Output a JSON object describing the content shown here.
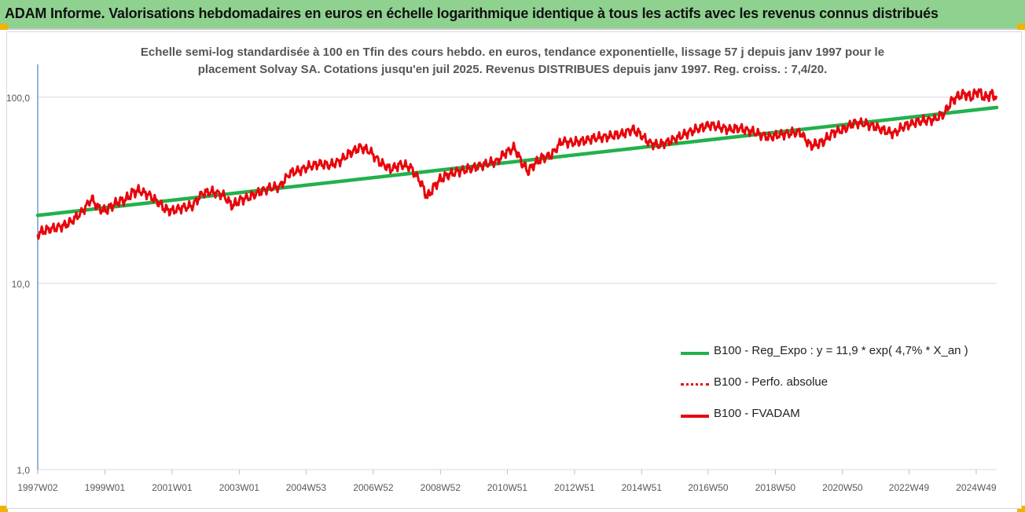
{
  "header": {
    "title": "ADAM Informe. Valorisations hebdomadaires en euros en échelle logarithmique identique à tous les actifs avec les revenus connus distribués"
  },
  "colors": {
    "header_bg": "#8fd18f",
    "regression": "#22b14c",
    "fvadam": "#e8060c",
    "perfo": "#e8060c",
    "accent": "#f0b400"
  },
  "chart_data": {
    "type": "line",
    "title": "Echelle semi-log standardisée à 100 en Tfin des cours hebdo. en euros, tendance exponentielle, lissage 57 j depuis janv 1997 pour le placement Solvay SA. Cotations jusqu'en juil 2025. Revenus DISTRIBUES depuis janv 1997. Reg. croiss. : 7,4/20.",
    "subtitle_lines": [
      "Echelle semi-log standardisée à 100 en Tfin des cours hebdo. en euros, tendance exponentielle, lissage 57 j depuis janv 1997 pour le",
      "placement Solvay SA. Cotations jusqu'en juil 2025. Revenus DISTRIBUES depuis janv 1997. Reg. croiss. : 7,4/20."
    ],
    "y_scale": "log",
    "ylim": [
      1,
      150
    ],
    "y_ticks": [
      {
        "value": 100,
        "label": "100,0"
      },
      {
        "value": 10,
        "label": "10,0"
      },
      {
        "value": 1,
        "label": "1,0"
      }
    ],
    "x_ticks": [
      {
        "year": 1997.0,
        "label": "1997W02"
      },
      {
        "year": 1999.0,
        "label": "1999W01"
      },
      {
        "year": 2001.0,
        "label": "2001W01"
      },
      {
        "year": 2003.0,
        "label": "2003W01"
      },
      {
        "year": 2004.99,
        "label": "2004W53"
      },
      {
        "year": 2006.99,
        "label": "2006W52"
      },
      {
        "year": 2008.99,
        "label": "2008W52"
      },
      {
        "year": 2010.98,
        "label": "2010W51"
      },
      {
        "year": 2012.98,
        "label": "2012W51"
      },
      {
        "year": 2014.98,
        "label": "2014W51"
      },
      {
        "year": 2016.96,
        "label": "2016W50"
      },
      {
        "year": 2018.96,
        "label": "2018W50"
      },
      {
        "year": 2020.96,
        "label": "2020W50"
      },
      {
        "year": 2022.94,
        "label": "2022W49"
      },
      {
        "year": 2024.94,
        "label": "2024W49"
      }
    ],
    "xlim": [
      1997.0,
      2025.55
    ],
    "grid": "horizontal",
    "legend_position": "bottom-right",
    "series": [
      {
        "name": "B100 - Reg_Expo : y = 11,9 * exp( 4,7% *  X_an )",
        "style": "solid-thick",
        "x": [
          1997.0,
          2025.55
        ],
        "values": [
          23.2,
          88.0
        ]
      },
      {
        "name": "B100 - Perfo. absolue",
        "style": "dotted",
        "x": [],
        "values": []
      },
      {
        "name": "B100 - FVADAM",
        "style": "solid",
        "x": [
          1997.0,
          1997.2,
          1997.5,
          1997.8,
          1998.0,
          1998.3,
          1998.6,
          1998.8,
          1999.0,
          1999.2,
          1999.4,
          1999.6,
          1999.8,
          2000.0,
          2000.3,
          2000.6,
          2000.8,
          2001.0,
          2001.3,
          2001.6,
          2001.9,
          2002.2,
          2002.5,
          2002.8,
          2003.0,
          2003.3,
          2003.6,
          2003.9,
          2004.2,
          2004.5,
          2004.8,
          2005.1,
          2005.4,
          2005.7,
          2006.0,
          2006.3,
          2006.6,
          2006.9,
          2007.2,
          2007.5,
          2007.8,
          2008.1,
          2008.4,
          2008.6,
          2008.8,
          2009.0,
          2009.2,
          2009.5,
          2009.8,
          2010.1,
          2010.4,
          2010.7,
          2010.9,
          2011.2,
          2011.4,
          2011.6,
          2011.8,
          2012.0,
          2012.3,
          2012.6,
          2012.9,
          2013.2,
          2013.5,
          2013.8,
          2014.1,
          2014.4,
          2014.7,
          2014.9,
          2015.2,
          2015.5,
          2015.8,
          2016.1,
          2016.4,
          2016.7,
          2017.0,
          2017.3,
          2017.6,
          2017.9,
          2018.2,
          2018.5,
          2018.8,
          2019.1,
          2019.4,
          2019.7,
          2020.0,
          2020.2,
          2020.4,
          2020.7,
          2021.0,
          2021.3,
          2021.6,
          2021.9,
          2022.2,
          2022.5,
          2022.8,
          2023.1,
          2023.4,
          2023.7,
          2024.0,
          2024.2,
          2024.4,
          2024.6,
          2024.8,
          2025.0,
          2025.2,
          2025.4,
          2025.55
        ],
        "values": [
          18.5,
          19.2,
          19.8,
          20.5,
          21.5,
          24.0,
          28.5,
          25.5,
          24.5,
          26.0,
          27.5,
          28.0,
          30.5,
          31.5,
          30.0,
          27.0,
          25.0,
          24.5,
          25.5,
          26.0,
          30.5,
          31.0,
          30.0,
          26.0,
          28.0,
          29.0,
          31.0,
          32.5,
          33.0,
          39.0,
          40.5,
          42.5,
          44.0,
          43.0,
          45.5,
          50.0,
          54.0,
          51.0,
          44.5,
          41.0,
          43.5,
          42.0,
          35.0,
          29.0,
          33.0,
          36.5,
          38.0,
          40.0,
          41.0,
          42.5,
          44.0,
          45.5,
          50.0,
          53.5,
          45.0,
          40.0,
          44.0,
          47.0,
          49.0,
          58.0,
          57.0,
          58.0,
          60.0,
          61.0,
          62.0,
          63.5,
          67.0,
          64.0,
          57.0,
          55.0,
          58.0,
          61.0,
          65.0,
          68.0,
          71.0,
          69.0,
          67.0,
          68.0,
          66.0,
          63.0,
          61.0,
          63.0,
          64.0,
          65.0,
          55.0,
          56.0,
          58.0,
          65.0,
          67.0,
          73.0,
          72.0,
          70.0,
          66.0,
          64.0,
          70.0,
          73.0,
          75.0,
          76.0,
          82.0,
          95.0,
          101.0,
          104.0,
          100.0,
          108.0,
          99.0,
          104.0,
          100.0
        ]
      }
    ]
  }
}
